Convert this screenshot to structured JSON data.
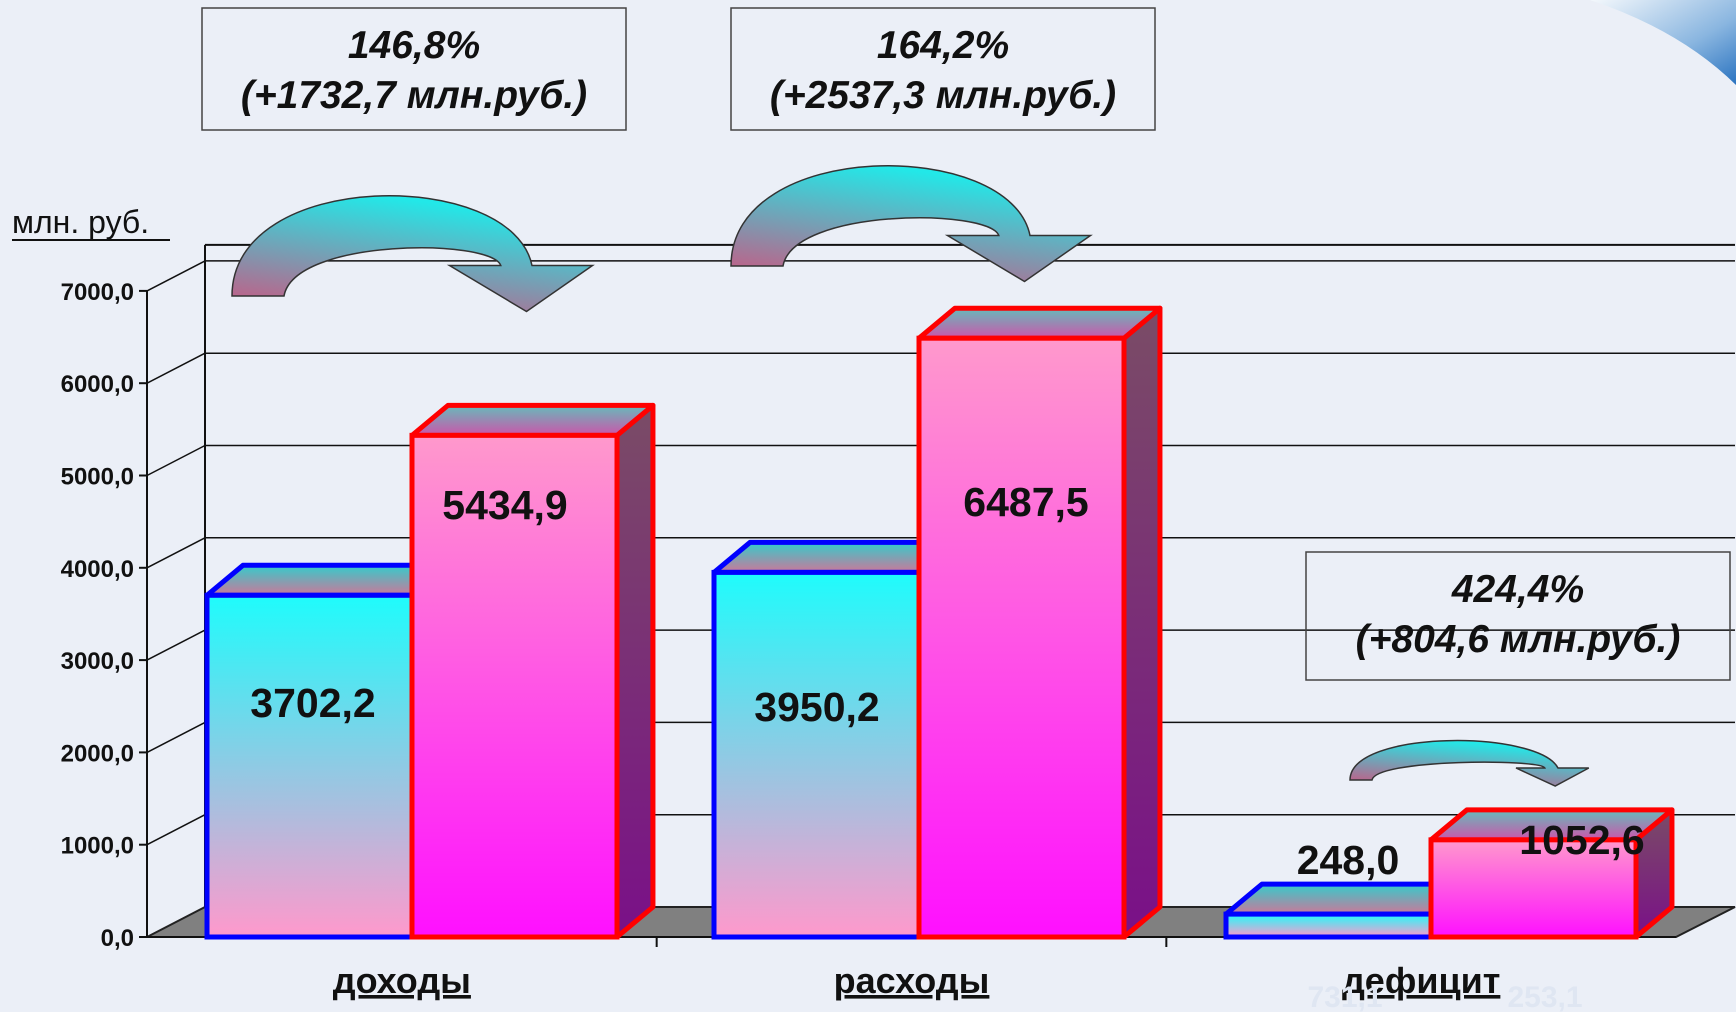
{
  "colors": {
    "series_2020_fill_top": "#1efcfc",
    "series_2020_fill_bottom": "#ff99cc",
    "series_2020_outline": "#0000ff",
    "series_2021_fill_top": "#ff99cc",
    "series_2021_fill_bottom": "#ff10ff",
    "series_2021_outline": "#ff0000",
    "floor": "#808080",
    "background": "#ebeff7"
  },
  "chart_data": {
    "type": "bar",
    "ylabel": "млн. руб.",
    "ylim": [
      0,
      7000
    ],
    "yticks": [
      "0,0",
      "1000,0",
      "2000,0",
      "3000,0",
      "4000,0",
      "5000,0",
      "6000,0",
      "7000,0"
    ],
    "grid": true,
    "categories": [
      "доходы",
      "расходы",
      "дефицит"
    ],
    "series": [
      {
        "values": [
          3702.2,
          3950.2,
          248.0
        ],
        "value_labels": [
          "3702,2",
          "3950,2",
          "248,0"
        ]
      },
      {
        "values": [
          5434.9,
          6487.5,
          1052.6
        ],
        "value_labels": [
          "5434,9",
          "6487,5",
          "1052,6"
        ]
      }
    ],
    "annotations": [
      {
        "category": "доходы",
        "percent": "146,8%",
        "delta": "(+1732,7 млн.руб.)"
      },
      {
        "category": "расходы",
        "percent": "164,2%",
        "delta": "(+2537,3 млн.руб.)"
      },
      {
        "category": "дефицит",
        "percent": "424,4%",
        "delta": "(+804,6 млн.руб.)"
      }
    ],
    "obscured_labels": [
      "731,1",
      "253,1"
    ]
  }
}
